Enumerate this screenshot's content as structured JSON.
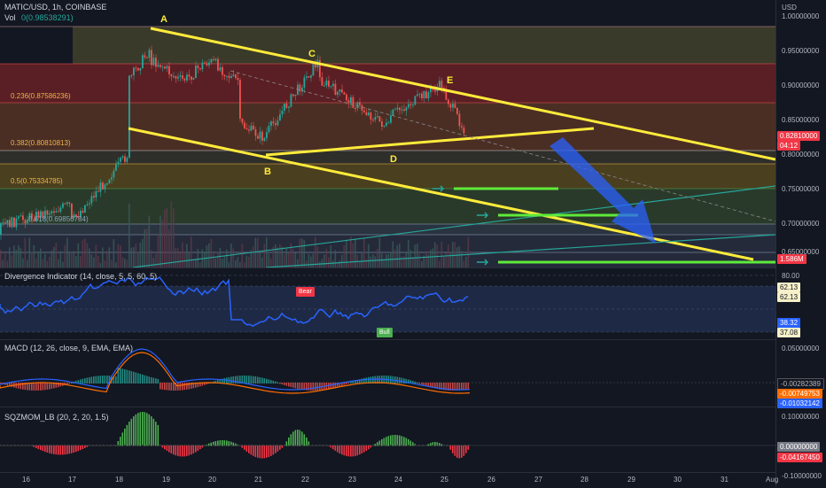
{
  "header": {
    "symbol": "MATIC/USD, 1h, COINBASE",
    "vol": "Vol",
    "vol_value": "0(0.98538291)"
  },
  "axis_currency": "USD",
  "price_ticks": [
    "1.00000000",
    "0.95000000",
    "0.90000000",
    "0.85000000",
    "0.80000000",
    "0.75000000",
    "0.70000000",
    "0.65000000"
  ],
  "price_tags": {
    "last": "0.82810000",
    "countdown": "04:12",
    "volume": "1.586M"
  },
  "fib_labels": [
    "0.236(0.87586236)",
    "0.382(0.80810813)",
    "0.5(0.75334785)",
    "0.618(0.69856784)"
  ],
  "pattern_points": [
    "A",
    "B",
    "C",
    "D",
    "E"
  ],
  "divergence": {
    "title": "Divergence Indicator (14, close, 5, 5, 60, 5)",
    "ticks": [
      "80.00",
      "62.13",
      "62.13",
      "38.32",
      "37.08"
    ],
    "bear": "Bear",
    "bull": "Bull"
  },
  "macd": {
    "title": "MACD (12, 26, close, 9, EMA, EMA)",
    "ticks": [
      "0.05000000",
      "-0.00282389",
      "-0.00749753",
      "-0.01032142"
    ]
  },
  "sqz": {
    "title": "SQZMOM_LB (20, 2, 20, 1.5)",
    "ticks": [
      "0.10000000",
      "0.00000000",
      "-0.04167450",
      "-0.10000000"
    ]
  },
  "time_labels": [
    "16",
    "17",
    "18",
    "19",
    "20",
    "21",
    "22",
    "23",
    "24",
    "25",
    "26",
    "27",
    "28",
    "29",
    "30",
    "31",
    "Aug"
  ],
  "colors": {
    "accent_yellow": "#ffeb3b",
    "red_tag": "#f23645",
    "green": "#4caf50",
    "blue": "#2962ff"
  }
}
